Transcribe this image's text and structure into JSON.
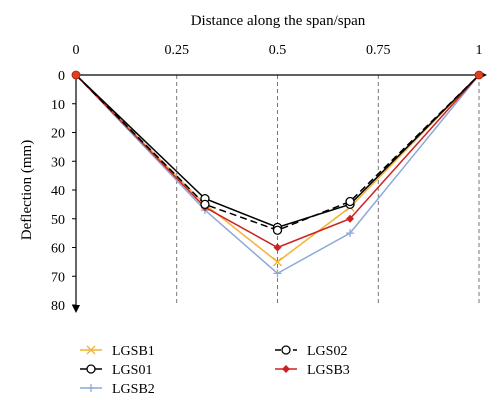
{
  "chart_data": {
    "type": "line",
    "xlabel": "Distance along the span/span",
    "ylabel": "Deflection (mm)",
    "xlim": [
      0,
      1
    ],
    "ylim": [
      0,
      80
    ],
    "y_axis_inverted": true,
    "x_axis_position": "top",
    "x_ticks": [
      {
        "value": 0,
        "label": "0"
      },
      {
        "value": 0.25,
        "label": "0.25"
      },
      {
        "value": 0.5,
        "label": "0.5"
      },
      {
        "value": 0.75,
        "label": "0.75"
      },
      {
        "value": 1,
        "label": "1"
      }
    ],
    "y_ticks": [
      {
        "value": 0,
        "label": "0"
      },
      {
        "value": 10,
        "label": "10"
      },
      {
        "value": 20,
        "label": "20"
      },
      {
        "value": 30,
        "label": "30"
      },
      {
        "value": 40,
        "label": "40"
      },
      {
        "value": 50,
        "label": "50"
      },
      {
        "value": 60,
        "label": "60"
      },
      {
        "value": 70,
        "label": "70"
      },
      {
        "value": 80,
        "label": "80"
      }
    ],
    "grid": {
      "vertical": "dashed",
      "horizontal": "none"
    },
    "legend_position": "bottom",
    "x": [
      0,
      0.32,
      0.5,
      0.68,
      1
    ],
    "series": [
      {
        "name": "LGSB1",
        "values": [
          0,
          45,
          65,
          46,
          0
        ],
        "color": "#f2b233",
        "marker": "x",
        "dash": "solid"
      },
      {
        "name": "LGS02",
        "values": [
          0,
          45,
          54,
          44,
          0
        ],
        "color": "#000000",
        "marker": "open-circle",
        "dash": "dashed"
      },
      {
        "name": "LGS01",
        "values": [
          0,
          43,
          53,
          45,
          0
        ],
        "color": "#000000",
        "marker": "open-circle",
        "dash": "solid"
      },
      {
        "name": "LGSB3",
        "values": [
          0,
          46,
          60,
          50,
          0
        ],
        "color": "#cc2222",
        "marker": "diamond",
        "dash": "solid"
      },
      {
        "name": "LGSB2",
        "values": [
          0,
          47,
          69,
          55,
          0
        ],
        "color": "#8fa8d8",
        "marker": "plus",
        "dash": "solid"
      }
    ],
    "legend": [
      {
        "name": "LGSB1",
        "color": "#f2b233",
        "marker": "x",
        "dash": "solid"
      },
      {
        "name": "LGS02",
        "color": "#000000",
        "marker": "open-circle",
        "dash": "dashed"
      },
      {
        "name": "LGS01",
        "color": "#000000",
        "marker": "open-circle",
        "dash": "solid"
      },
      {
        "name": "LGSB3",
        "color": "#cc2222",
        "marker": "diamond",
        "dash": "solid"
      },
      {
        "name": "LGSB2",
        "color": "#8fa8d8",
        "marker": "plus",
        "dash": "solid"
      }
    ]
  }
}
